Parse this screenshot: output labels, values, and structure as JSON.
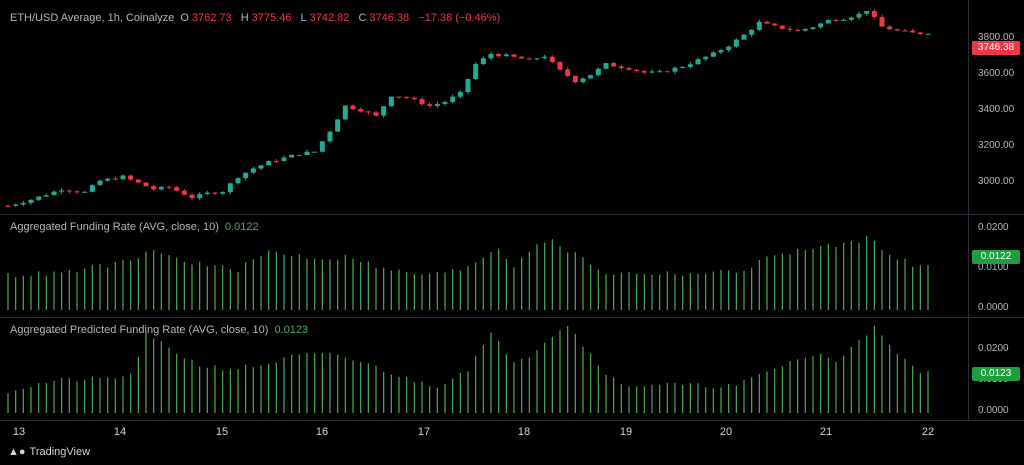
{
  "header": {
    "symbol": "ETH/USD Average, 1h, Coinalyze",
    "open_label": "O",
    "open": "3762.73",
    "high_label": "H",
    "high": "3775.46",
    "low_label": "L",
    "low": "3742.82",
    "close_label": "C",
    "close": "3746.38",
    "change": "−17.38 (−0.46%)"
  },
  "price_scale": {
    "ticks": [
      "3800.00",
      "3600.00",
      "3400.00",
      "3200.00",
      "3000.00"
    ],
    "last_price": "3746.38",
    "last_color": "#f23645"
  },
  "funding": {
    "title": "Aggregated Funding Rate (AVG, close, 10)",
    "value": "0.0122",
    "ticks": [
      "0.0200",
      "0.0100",
      "0.0000"
    ],
    "tag": "0.0122"
  },
  "predicted": {
    "title": "Aggregated Predicted Funding Rate (AVG, close, 10)",
    "value": "0.0123",
    "ticks": [
      "0.0200",
      "0.0100",
      "0.0000"
    ],
    "tag": "0.0123"
  },
  "time_axis": {
    "labels": [
      "13",
      "14",
      "15",
      "16",
      "17",
      "18",
      "19",
      "20",
      "21",
      "22"
    ]
  },
  "branding": {
    "logo": "TradingView"
  },
  "colors": {
    "up": "#22ab94",
    "down": "#f23645",
    "hist": "#4caf50",
    "bg": "#000000"
  },
  "chart_data": [
    {
      "type": "candlestick",
      "title": "ETH/USD Average, 1h, Coinalyze",
      "ylim": [
        2900,
        3870
      ],
      "x_ticks": [
        "13",
        "14",
        "15",
        "16",
        "17",
        "18",
        "19",
        "20",
        "21",
        "22"
      ],
      "y_ticks": [
        3000,
        3200,
        3400,
        3600,
        3800
      ],
      "close_points": [
        [
          0,
          2920
        ],
        [
          3,
          2950
        ],
        [
          5,
          2975
        ],
        [
          7,
          3000
        ],
        [
          10,
          2985
        ],
        [
          12,
          3040
        ],
        [
          15,
          3060
        ],
        [
          17,
          3030
        ],
        [
          19,
          3000
        ],
        [
          21,
          3010
        ],
        [
          24,
          2960
        ],
        [
          26,
          2980
        ],
        [
          28,
          2990
        ],
        [
          30,
          3060
        ],
        [
          32,
          3100
        ],
        [
          34,
          3130
        ],
        [
          36,
          3150
        ],
        [
          38,
          3170
        ],
        [
          40,
          3180
        ],
        [
          42,
          3280
        ],
        [
          44,
          3400
        ],
        [
          46,
          3380
        ],
        [
          48,
          3350
        ],
        [
          50,
          3450
        ],
        [
          52,
          3440
        ],
        [
          55,
          3400
        ],
        [
          57,
          3420
        ],
        [
          59,
          3460
        ],
        [
          61,
          3600
        ],
        [
          63,
          3650
        ],
        [
          65,
          3640
        ],
        [
          68,
          3620
        ],
        [
          70,
          3640
        ],
        [
          72,
          3570
        ],
        [
          74,
          3520
        ],
        [
          76,
          3550
        ],
        [
          78,
          3600
        ],
        [
          81,
          3580
        ],
        [
          83,
          3560
        ],
        [
          85,
          3560
        ],
        [
          88,
          3590
        ],
        [
          90,
          3620
        ],
        [
          92,
          3650
        ],
        [
          94,
          3690
        ],
        [
          96,
          3740
        ],
        [
          98,
          3800
        ],
        [
          100,
          3780
        ],
        [
          103,
          3760
        ],
        [
          105,
          3780
        ],
        [
          107,
          3810
        ],
        [
          109,
          3820
        ],
        [
          111,
          3840
        ],
        [
          112,
          3860
        ],
        [
          114,
          3780
        ],
        [
          116,
          3760
        ],
        [
          118,
          3750
        ],
        [
          120,
          3746
        ]
      ],
      "last": 3746.38
    },
    {
      "type": "bar",
      "title": "Aggregated Funding Rate (AVG, close, 10)",
      "ylim": [
        0,
        0.025
      ],
      "y_ticks": [
        0.0,
        0.01,
        0.02
      ],
      "profile": [
        [
          0,
          0.0095
        ],
        [
          7,
          0.01
        ],
        [
          12,
          0.012
        ],
        [
          17,
          0.0135
        ],
        [
          18,
          0.0165
        ],
        [
          22,
          0.014
        ],
        [
          26,
          0.012
        ],
        [
          30,
          0.011
        ],
        [
          34,
          0.016
        ],
        [
          37,
          0.015
        ],
        [
          41,
          0.014
        ],
        [
          45,
          0.0145
        ],
        [
          49,
          0.011
        ],
        [
          55,
          0.0095
        ],
        [
          59,
          0.011
        ],
        [
          64,
          0.017
        ],
        [
          66,
          0.012
        ],
        [
          69,
          0.0185
        ],
        [
          71,
          0.0185
        ],
        [
          75,
          0.014
        ],
        [
          78,
          0.01
        ],
        [
          83,
          0.01
        ],
        [
          88,
          0.01
        ],
        [
          92,
          0.01
        ],
        [
          96,
          0.011
        ],
        [
          100,
          0.015
        ],
        [
          104,
          0.0165
        ],
        [
          108,
          0.0175
        ],
        [
          112,
          0.0195
        ],
        [
          114,
          0.017
        ],
        [
          118,
          0.012
        ],
        [
          120,
          0.0122
        ]
      ],
      "last": 0.0122
    },
    {
      "type": "bar",
      "title": "Aggregated Predicted Funding Rate (AVG, close, 10)",
      "ylim": [
        0,
        0.027
      ],
      "y_ticks": [
        0.0,
        0.01,
        0.02
      ],
      "profile": [
        [
          0,
          0.0065
        ],
        [
          6,
          0.0095
        ],
        [
          12,
          0.01
        ],
        [
          16,
          0.011
        ],
        [
          18,
          0.023
        ],
        [
          21,
          0.019
        ],
        [
          25,
          0.014
        ],
        [
          29,
          0.013
        ],
        [
          33,
          0.014
        ],
        [
          38,
          0.017
        ],
        [
          43,
          0.017
        ],
        [
          48,
          0.0135
        ],
        [
          52,
          0.01
        ],
        [
          56,
          0.008
        ],
        [
          60,
          0.013
        ],
        [
          63,
          0.023
        ],
        [
          66,
          0.0155
        ],
        [
          68,
          0.017
        ],
        [
          71,
          0.023
        ],
        [
          73,
          0.026
        ],
        [
          75,
          0.02
        ],
        [
          78,
          0.012
        ],
        [
          80,
          0.008
        ],
        [
          85,
          0.0085
        ],
        [
          90,
          0.008
        ],
        [
          95,
          0.008
        ],
        [
          100,
          0.013
        ],
        [
          103,
          0.016
        ],
        [
          106,
          0.017
        ],
        [
          108,
          0.015
        ],
        [
          111,
          0.022
        ],
        [
          113,
          0.025
        ],
        [
          116,
          0.017
        ],
        [
          119,
          0.012
        ],
        [
          120,
          0.0123
        ]
      ],
      "last": 0.0123
    }
  ]
}
